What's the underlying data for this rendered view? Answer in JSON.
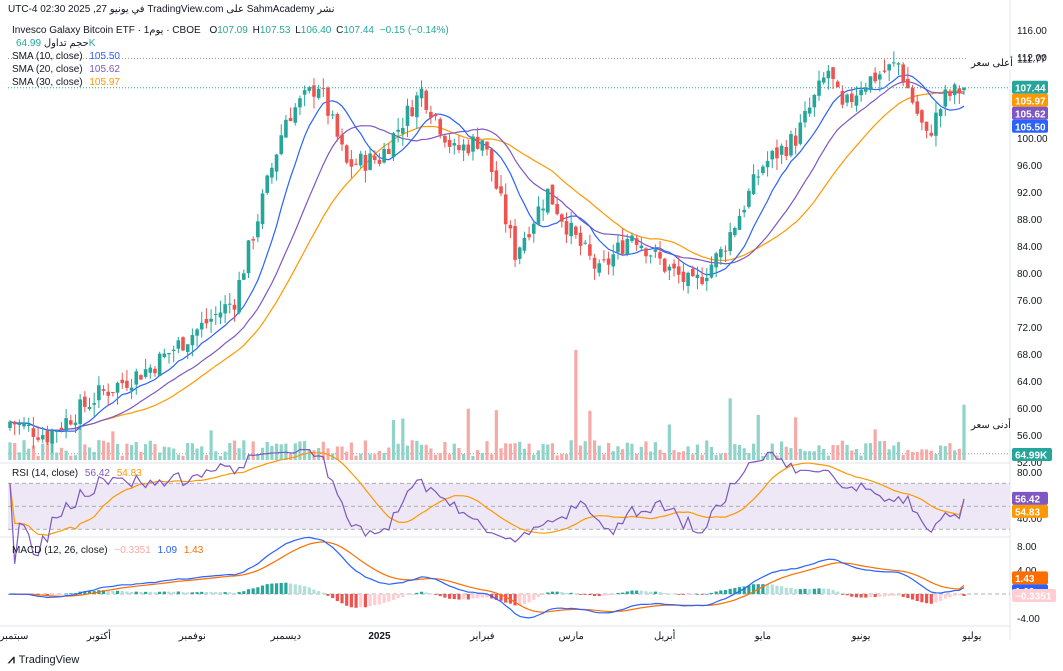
{
  "header": {
    "publish_note": "نشر SahmAcademy على TradingView.com في يونيو 27, 2025 02:30 UTC-4",
    "symbol_line": "Invesco Galaxy Bitcoin ETF · يوم1 · CBOE",
    "ohlc": {
      "o_label": "O",
      "o": "107.09",
      "h_label": "H",
      "h": "107.53",
      "l_label": "L",
      "l": "106.40",
      "c_label": "C",
      "c": "107.44",
      "change": "−0.15 (−0.14%)"
    },
    "volume_label": "حجم تداول",
    "volume_value": "64.99K",
    "sma10_label": "SMA (10, close)",
    "sma10_value": "105.50",
    "sma20_label": "SMA (20, close)",
    "sma20_value": "105.62",
    "sma30_label": "SMA (30, close)",
    "sma30_value": "105.97"
  },
  "colors": {
    "up": "#26a69a",
    "down": "#ef5350",
    "vol_up": "#8fd3c9",
    "vol_down": "#f7a9a7",
    "sma10": "#2962ff",
    "sma20": "#7e57c2",
    "sma30": "#ff9800",
    "rsi_line": "#7e57c2",
    "rsi_ma": "#ff9800",
    "rsi_band": "#ede7f6",
    "macd_line": "#2962ff",
    "signal_line": "#ff6d00",
    "last_price_tag": "#26a69a"
  },
  "price_axis": {
    "ticks": [
      "116.00",
      "112.00",
      "108.00",
      "104.00",
      "100.00",
      "96.00",
      "92.00",
      "88.00",
      "84.00",
      "80.00",
      "76.00",
      "72.00",
      "68.00",
      "64.00",
      "60.00",
      "56.00",
      "52.00"
    ],
    "high_label": "أعلى سعر",
    "high_value": "111.77",
    "low_label": "أدنى سعر",
    "low_value": "53.23",
    "last_price": "107.44",
    "sma30_tag": "105.97",
    "sma20_tag": "105.62",
    "sma10_tag": "105.50",
    "volume_tag": "64.99K"
  },
  "rsi": {
    "label": "RSI (14, close)",
    "value": "56.42",
    "ma_value": "54.83",
    "ticks": [
      "80.00",
      "40.00"
    ],
    "tag_rsi": "56.42",
    "tag_ma": "54.83"
  },
  "macd": {
    "label": "MACD (12, 26, close)",
    "hist_value": "−0.3351",
    "macd_value": "1.09",
    "signal_value": "1.43",
    "ticks": [
      "8.00",
      "4.00",
      "-4.00"
    ],
    "tag_signal": "1.43",
    "tag_macd": "1.09",
    "tag_hist": "−0.3351"
  },
  "time_axis": [
    "سبتمبر",
    "أكتوبر",
    "نوفمبر",
    "ديسمبر",
    "2025",
    "فبراير",
    "مارس",
    "أبريل",
    "مايو",
    "يونيو",
    "يوليو"
  ],
  "footer": {
    "brand": "TradingView"
  },
  "chart_data": {
    "type": "candlestick",
    "title": "Invesco Galaxy Bitcoin ETF · 1D · CBOE",
    "ylim": [
      52,
      116
    ],
    "anchor_closes": [
      {
        "month": "سبتمبر",
        "close": 58
      },
      {
        "month": "أكتوبر",
        "close": 62
      },
      {
        "month": "نوفمبر",
        "close": 71
      },
      {
        "month": "ديسمبر",
        "close": 103
      },
      {
        "month": "2025",
        "close": 97
      },
      {
        "month": "فبراير",
        "close": 100
      },
      {
        "month": "مارس",
        "close": 86
      },
      {
        "month": "أبريل",
        "close": 81
      },
      {
        "month": "مايو",
        "close": 96
      },
      {
        "month": "يونيو",
        "close": 108
      },
      {
        "month": "يوليو",
        "close": 107.44
      }
    ],
    "last": {
      "open": 107.09,
      "high": 107.53,
      "low": 106.4,
      "close": 107.44
    },
    "range_high": 111.77,
    "range_low": 53.23,
    "sma": {
      "sma10": 105.5,
      "sma20": 105.62,
      "sma30": 105.97
    },
    "rsi_last": 56.42,
    "rsi_ma_last": 54.83,
    "macd_last": {
      "macd": 1.09,
      "signal": 1.43,
      "histogram": -0.3351
    }
  }
}
